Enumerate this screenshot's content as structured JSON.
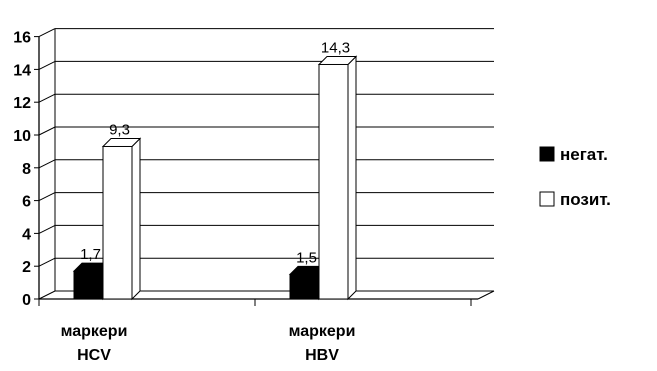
{
  "chart_data": {
    "type": "bar",
    "title": "",
    "xlabel": "",
    "ylabel": "",
    "ylim": [
      0,
      16
    ],
    "yticks": [
      0,
      2,
      4,
      6,
      8,
      10,
      12,
      14,
      16
    ],
    "grid": true,
    "style": "3d",
    "categories": [
      [
        "маркери",
        "HCV"
      ],
      [
        "маркери",
        "HBV"
      ]
    ],
    "series": [
      {
        "name": "негат.",
        "color": "#000000",
        "values": [
          1.7,
          1.5
        ],
        "labels": [
          "1,7",
          "1,5"
        ]
      },
      {
        "name": "позит.",
        "color": "#ffffff",
        "values": [
          9.3,
          14.3
        ],
        "labels": [
          "9,3",
          "14,3"
        ]
      }
    ],
    "legend_position": "right"
  }
}
